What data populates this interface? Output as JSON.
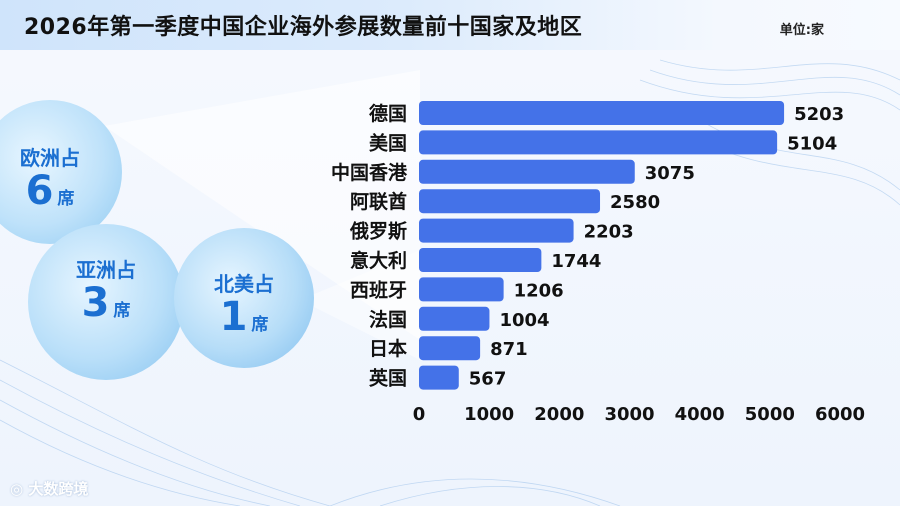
{
  "header": {
    "title": "2026年第一季度中国企业海外参展数量前十国家及地区",
    "unit": "单位:家"
  },
  "regions": [
    {
      "name": "欧洲占",
      "count": "6",
      "suffix": "席"
    },
    {
      "name": "亚洲占",
      "count": "3",
      "suffix": "席"
    },
    {
      "name": "北美占",
      "count": "1",
      "suffix": "席"
    }
  ],
  "logo": {
    "icon": "kk-logo-icon",
    "text": "大数跨境"
  },
  "colors": {
    "bar": "#4472e8",
    "text": "#111111",
    "accent": "#1b6fd1"
  },
  "chart_data": {
    "type": "bar",
    "orientation": "horizontal",
    "categories": [
      "德国",
      "美国",
      "中国香港",
      "阿联酋",
      "俄罗斯",
      "意大利",
      "西班牙",
      "法国",
      "日本",
      "英国"
    ],
    "values": [
      5203,
      5104,
      3075,
      2580,
      2203,
      1744,
      1206,
      1004,
      871,
      567
    ],
    "xlim": [
      0,
      6000
    ],
    "xticks": [
      "0",
      "1000",
      "2000",
      "3000",
      "4000",
      "5000",
      "6000"
    ],
    "grid": false,
    "data_labels": true
  }
}
